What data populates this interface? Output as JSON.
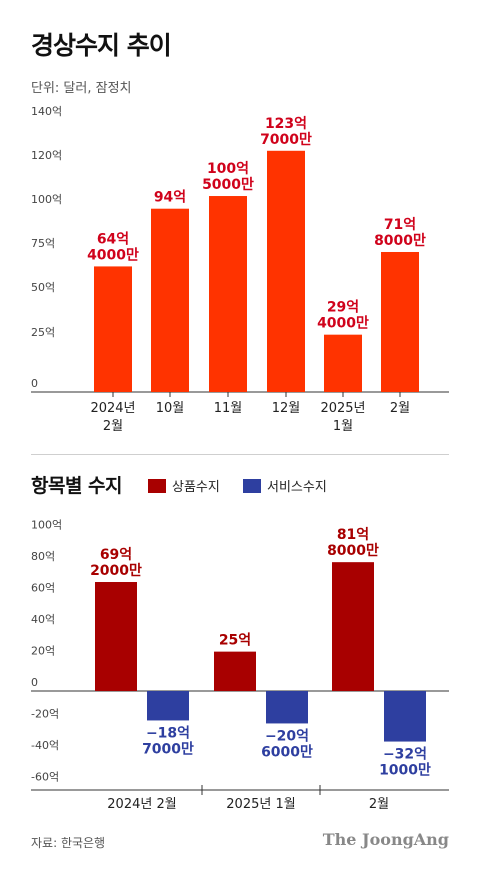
{
  "title": "경상수지 추이",
  "unit_note": "단위: 달러, 잠정치",
  "colors": {
    "chart1_bar": "#ff3300",
    "chart1_label": "#d0021b",
    "goods": "#a80000",
    "services": "#2e3fa0",
    "axis_text": "#444444"
  },
  "section2": {
    "title": "항목별 수지",
    "legend_goods": "상품수지",
    "legend_services": "서비스수지"
  },
  "source": "자료: 한국은행",
  "logo": "The JoongAng",
  "chart_data": [
    {
      "type": "bar",
      "title": "경상수지 추이",
      "categories": [
        "2024년\n2월",
        "10월",
        "11월",
        "12월",
        "2025년\n1월",
        "2월"
      ],
      "values": [
        64.4,
        94,
        100.5,
        123.7,
        29.4,
        71.8
      ],
      "data_labels": [
        "64억\n4000만",
        "94억",
        "100억\n5000만",
        "123억\n7000만",
        "29억\n4000만",
        "71억\n8000만"
      ],
      "ylim": [
        0,
        140
      ],
      "yticks": [
        0,
        25,
        50,
        75,
        100,
        120,
        140
      ],
      "ytick_labels": [
        "0",
        "25억",
        "50억",
        "75억",
        "100억",
        "120억",
        "140억"
      ],
      "grid": false
    },
    {
      "type": "bar",
      "title": "항목별 수지",
      "categories": [
        "2024년 2월",
        "2025년 1월",
        "2월"
      ],
      "series": [
        {
          "name": "상품수지",
          "values": [
            69.2,
            25,
            81.8
          ],
          "labels": [
            "69억\n2000만",
            "25억",
            "81억\n8000만"
          ]
        },
        {
          "name": "서비스수지",
          "values": [
            -18.7,
            -20.6,
            -32.1
          ],
          "labels": [
            "−18억\n7000만",
            "−20억\n6000만",
            "−32억\n1000만"
          ]
        }
      ],
      "ylim": [
        -60,
        100
      ],
      "yticks": [
        100,
        80,
        60,
        40,
        20,
        0,
        -20,
        -40,
        -60
      ],
      "ytick_labels": [
        "100억",
        "80억",
        "60억",
        "40억",
        "20억",
        "0",
        "-20억",
        "-40억",
        "-60억"
      ],
      "legend": "top",
      "grid": false
    }
  ]
}
